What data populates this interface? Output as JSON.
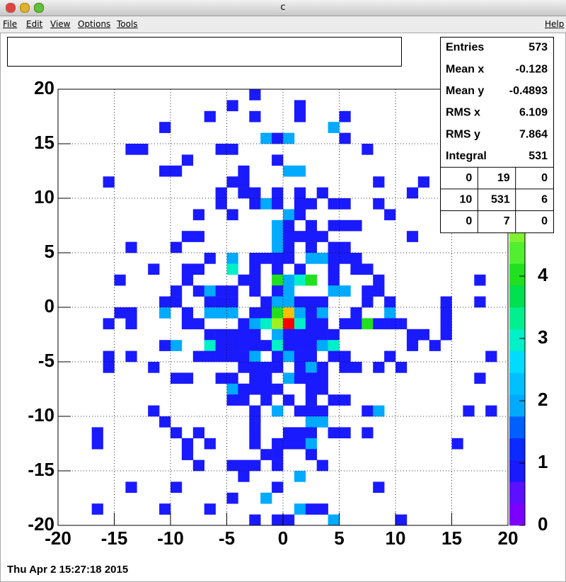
{
  "window": {
    "title": "c",
    "menu": [
      "File",
      "Edit",
      "View",
      "Options",
      "Tools"
    ],
    "help": "Help"
  },
  "date": "Thu Apr  2 15:27:18 2015",
  "stats": {
    "rows": [
      [
        "Entries",
        573
      ],
      [
        "Mean x",
        -0.128
      ],
      [
        "Mean y",
        -0.4893
      ],
      [
        "RMS x",
        6.109
      ],
      [
        "RMS y",
        7.864
      ],
      [
        "Integral",
        531
      ]
    ],
    "grid": [
      [
        0,
        19,
        0
      ],
      [
        10,
        531,
        6
      ],
      [
        0,
        7,
        0
      ]
    ]
  },
  "chart_data": {
    "type": "heatmap",
    "xlim": [
      -20,
      20
    ],
    "ylim": [
      -20,
      20
    ],
    "xticks": [
      -20,
      -15,
      -10,
      -5,
      0,
      5,
      10,
      15,
      20
    ],
    "yticks": [
      -20,
      -15,
      -10,
      -5,
      0,
      5,
      10,
      15,
      20
    ],
    "grid": true,
    "zlim": [
      0,
      7
    ],
    "zticks": [
      0,
      1,
      2,
      3,
      4
    ],
    "palette": [
      "#7d00ff",
      "#5c10ff",
      "#1a1aff",
      "#0a2aff",
      "#0060ff",
      "#00aaff",
      "#00c0ff",
      "#00dcff",
      "#00f0c8",
      "#00f090",
      "#00e050",
      "#20e020",
      "#50f030",
      "#80f030",
      "#a0f020",
      "#c8f000",
      "#e8e800",
      "#f8c000",
      "#ff8000",
      "#ff0000"
    ],
    "cells": [
      [
        -3,
        19,
        1
      ],
      [
        -5,
        18,
        1
      ],
      [
        1,
        18,
        1
      ],
      [
        -7,
        17,
        1
      ],
      [
        -3,
        17,
        1
      ],
      [
        1,
        17,
        1
      ],
      [
        5,
        17,
        1
      ],
      [
        -11,
        16,
        1
      ],
      [
        4,
        16,
        2
      ],
      [
        -2,
        15,
        2
      ],
      [
        -1,
        15,
        1
      ],
      [
        0,
        15,
        2
      ],
      [
        5,
        15,
        1
      ],
      [
        -14,
        14,
        1
      ],
      [
        -13,
        14,
        1
      ],
      [
        -6,
        14,
        1
      ],
      [
        -5,
        14,
        1
      ],
      [
        7,
        14,
        1
      ],
      [
        -9,
        13,
        1
      ],
      [
        -1,
        13,
        1
      ],
      [
        -11,
        12,
        1
      ],
      [
        -10,
        12,
        1
      ],
      [
        -4,
        12,
        1
      ],
      [
        0,
        12,
        2
      ],
      [
        1,
        12,
        2
      ],
      [
        -16,
        11,
        1
      ],
      [
        -5,
        11,
        1
      ],
      [
        -4,
        11,
        1
      ],
      [
        8,
        11,
        1
      ],
      [
        12,
        11,
        1
      ],
      [
        -6,
        10,
        1
      ],
      [
        -4,
        10,
        1
      ],
      [
        -3,
        10,
        1
      ],
      [
        -1,
        10,
        1
      ],
      [
        1,
        10,
        1
      ],
      [
        3,
        10,
        1
      ],
      [
        11,
        10,
        1
      ],
      [
        -6,
        9,
        1
      ],
      [
        -3,
        9,
        1
      ],
      [
        -2,
        9,
        2
      ],
      [
        -1,
        9,
        1
      ],
      [
        1,
        9,
        1
      ],
      [
        2,
        9,
        1
      ],
      [
        4,
        9,
        1
      ],
      [
        5,
        9,
        1
      ],
      [
        8,
        9,
        1
      ],
      [
        -8,
        8,
        1
      ],
      [
        -5,
        8,
        1
      ],
      [
        0,
        8,
        2
      ],
      [
        1,
        8,
        1
      ],
      [
        9,
        8,
        1
      ],
      [
        -1,
        7,
        2
      ],
      [
        0,
        7,
        1
      ],
      [
        2,
        7,
        1
      ],
      [
        4,
        7,
        1
      ],
      [
        5,
        7,
        1
      ],
      [
        6,
        7,
        1
      ],
      [
        -9,
        6,
        1
      ],
      [
        -8,
        6,
        1
      ],
      [
        -1,
        6,
        2
      ],
      [
        0,
        6,
        1
      ],
      [
        1,
        6,
        1
      ],
      [
        2,
        6,
        1
      ],
      [
        3,
        6,
        1
      ],
      [
        11,
        6,
        1
      ],
      [
        -14,
        5,
        1
      ],
      [
        -10,
        5,
        1
      ],
      [
        -1,
        5,
        2
      ],
      [
        0,
        5,
        1
      ],
      [
        2,
        5,
        1
      ],
      [
        4,
        5,
        1
      ],
      [
        5,
        5,
        1
      ],
      [
        -7,
        4,
        1
      ],
      [
        -5,
        4,
        2
      ],
      [
        -3,
        4,
        1
      ],
      [
        -2,
        4,
        1
      ],
      [
        -1,
        4,
        1
      ],
      [
        0,
        4,
        1
      ],
      [
        2,
        4,
        2
      ],
      [
        3,
        4,
        2
      ],
      [
        4,
        4,
        1
      ],
      [
        5,
        4,
        1
      ],
      [
        6,
        4,
        1
      ],
      [
        -12,
        3,
        1
      ],
      [
        -9,
        3,
        1
      ],
      [
        -8,
        3,
        1
      ],
      [
        -5,
        3,
        3
      ],
      [
        -3,
        3,
        1
      ],
      [
        -1,
        3,
        1
      ],
      [
        1,
        3,
        1
      ],
      [
        4,
        3,
        1
      ],
      [
        6,
        3,
        1
      ],
      [
        7,
        3,
        1
      ],
      [
        -15,
        2,
        1
      ],
      [
        -9,
        2,
        1
      ],
      [
        -4,
        2,
        1
      ],
      [
        -3,
        2,
        1
      ],
      [
        -1,
        2,
        4
      ],
      [
        0,
        2,
        2
      ],
      [
        1,
        2,
        3
      ],
      [
        2,
        2,
        4
      ],
      [
        4,
        2,
        1
      ],
      [
        8,
        2,
        1
      ],
      [
        17,
        2,
        1
      ],
      [
        -10,
        1,
        1
      ],
      [
        -8,
        1,
        1
      ],
      [
        -7,
        1,
        2
      ],
      [
        -6,
        1,
        1
      ],
      [
        -5,
        1,
        1
      ],
      [
        -3,
        1,
        1
      ],
      [
        -1,
        1,
        1
      ],
      [
        0,
        1,
        2
      ],
      [
        4,
        1,
        2
      ],
      [
        5,
        1,
        2
      ],
      [
        7,
        1,
        1
      ],
      [
        8,
        1,
        1
      ],
      [
        -11,
        0,
        1
      ],
      [
        -10,
        0,
        1
      ],
      [
        -7,
        0,
        1
      ],
      [
        -6,
        0,
        1
      ],
      [
        -5,
        0,
        1
      ],
      [
        -2,
        0,
        1
      ],
      [
        -1,
        0,
        2
      ],
      [
        0,
        0,
        2
      ],
      [
        1,
        0,
        1
      ],
      [
        2,
        0,
        1
      ],
      [
        3,
        0,
        1
      ],
      [
        7,
        0,
        1
      ],
      [
        9,
        0,
        1
      ],
      [
        14,
        0,
        1
      ],
      [
        17,
        0,
        1
      ],
      [
        -15,
        -1,
        1
      ],
      [
        -14,
        -1,
        1
      ],
      [
        -11,
        -1,
        2
      ],
      [
        -9,
        -1,
        1
      ],
      [
        -7,
        -1,
        2
      ],
      [
        -6,
        -1,
        2
      ],
      [
        -5,
        -1,
        2
      ],
      [
        -3,
        -1,
        1
      ],
      [
        -2,
        -1,
        1
      ],
      [
        -1,
        -1,
        4
      ],
      [
        0,
        -1,
        6
      ],
      [
        1,
        -1,
        2
      ],
      [
        2,
        -1,
        1
      ],
      [
        3,
        -1,
        2
      ],
      [
        6,
        -1,
        1
      ],
      [
        9,
        -1,
        2
      ],
      [
        14,
        -1,
        1
      ],
      [
        -16,
        -2,
        1
      ],
      [
        -14,
        -2,
        1
      ],
      [
        -9,
        -2,
        1
      ],
      [
        -8,
        -2,
        1
      ],
      [
        -4,
        -2,
        1
      ],
      [
        -3,
        -2,
        2
      ],
      [
        -2,
        -2,
        3
      ],
      [
        -1,
        -2,
        5
      ],
      [
        0,
        -2,
        7
      ],
      [
        1,
        -2,
        3
      ],
      [
        2,
        -2,
        1
      ],
      [
        3,
        -2,
        1
      ],
      [
        5,
        -2,
        1
      ],
      [
        6,
        -2,
        1
      ],
      [
        7,
        -2,
        4
      ],
      [
        8,
        -2,
        1
      ],
      [
        9,
        -2,
        1
      ],
      [
        10,
        -2,
        1
      ],
      [
        14,
        -2,
        1
      ],
      [
        -7,
        -3,
        1
      ],
      [
        -6,
        -3,
        1
      ],
      [
        -5,
        -3,
        1
      ],
      [
        -4,
        -3,
        1
      ],
      [
        -3,
        -3,
        1
      ],
      [
        -1,
        -3,
        2
      ],
      [
        0,
        -3,
        1
      ],
      [
        1,
        -3,
        1
      ],
      [
        2,
        -3,
        1
      ],
      [
        3,
        -3,
        1
      ],
      [
        4,
        -3,
        1
      ],
      [
        11,
        -3,
        1
      ],
      [
        12,
        -3,
        1
      ],
      [
        14,
        -3,
        1
      ],
      [
        -11,
        -4,
        1
      ],
      [
        -10,
        -4,
        2
      ],
      [
        -7,
        -4,
        3
      ],
      [
        -6,
        -4,
        1
      ],
      [
        -5,
        -4,
        1
      ],
      [
        -4,
        -4,
        1
      ],
      [
        -3,
        -4,
        1
      ],
      [
        -2,
        -4,
        1
      ],
      [
        -1,
        -4,
        3
      ],
      [
        0,
        -4,
        1
      ],
      [
        1,
        -4,
        1
      ],
      [
        2,
        -4,
        1
      ],
      [
        3,
        -4,
        2
      ],
      [
        4,
        -4,
        3
      ],
      [
        11,
        -4,
        1
      ],
      [
        13,
        -4,
        1
      ],
      [
        -16,
        -5,
        1
      ],
      [
        -14,
        -5,
        1
      ],
      [
        -8,
        -5,
        1
      ],
      [
        -7,
        -5,
        1
      ],
      [
        -6,
        -5,
        1
      ],
      [
        -5,
        -5,
        1
      ],
      [
        -4,
        -5,
        1
      ],
      [
        -3,
        -5,
        2
      ],
      [
        -1,
        -5,
        1
      ],
      [
        0,
        -5,
        2
      ],
      [
        1,
        -5,
        1
      ],
      [
        2,
        -5,
        1
      ],
      [
        4,
        -5,
        1
      ],
      [
        5,
        -5,
        1
      ],
      [
        9,
        -5,
        1
      ],
      [
        18,
        -5,
        1
      ],
      [
        -16,
        -6,
        1
      ],
      [
        -12,
        -6,
        1
      ],
      [
        -4,
        -6,
        1
      ],
      [
        -3,
        -6,
        1
      ],
      [
        -2,
        -6,
        1
      ],
      [
        -1,
        -6,
        1
      ],
      [
        1,
        -6,
        1
      ],
      [
        2,
        -6,
        2
      ],
      [
        3,
        -6,
        1
      ],
      [
        5,
        -6,
        1
      ],
      [
        6,
        -6,
        1
      ],
      [
        8,
        -6,
        1
      ],
      [
        10,
        -6,
        1
      ],
      [
        -10,
        -7,
        1
      ],
      [
        -9,
        -7,
        1
      ],
      [
        -6,
        -7,
        1
      ],
      [
        -5,
        -7,
        1
      ],
      [
        -3,
        -7,
        1
      ],
      [
        -2,
        -7,
        1
      ],
      [
        0,
        -7,
        2
      ],
      [
        1,
        -7,
        1
      ],
      [
        2,
        -7,
        1
      ],
      [
        3,
        -7,
        1
      ],
      [
        17,
        -7,
        1
      ],
      [
        -5,
        -8,
        2
      ],
      [
        -4,
        -8,
        1
      ],
      [
        -3,
        -8,
        1
      ],
      [
        -2,
        -8,
        1
      ],
      [
        -1,
        -8,
        1
      ],
      [
        2,
        -8,
        1
      ],
      [
        3,
        -8,
        1
      ],
      [
        -5,
        -9,
        1
      ],
      [
        -4,
        -9,
        1
      ],
      [
        -2,
        -9,
        1
      ],
      [
        0,
        -9,
        1
      ],
      [
        2,
        -9,
        1
      ],
      [
        4,
        -9,
        1
      ],
      [
        5,
        -9,
        1
      ],
      [
        -12,
        -10,
        1
      ],
      [
        -3,
        -10,
        1
      ],
      [
        -1,
        -10,
        2
      ],
      [
        1,
        -10,
        1
      ],
      [
        2,
        -10,
        1
      ],
      [
        3,
        -10,
        1
      ],
      [
        7,
        -10,
        1
      ],
      [
        8,
        -10,
        2
      ],
      [
        16,
        -10,
        1
      ],
      [
        18,
        -10,
        1
      ],
      [
        -11,
        -11,
        1
      ],
      [
        -3,
        -11,
        1
      ],
      [
        2,
        -11,
        2
      ],
      [
        3,
        -11,
        2
      ],
      [
        -17,
        -12,
        1
      ],
      [
        -10,
        -12,
        1
      ],
      [
        -8,
        -12,
        1
      ],
      [
        -3,
        -12,
        1
      ],
      [
        0,
        -12,
        1
      ],
      [
        1,
        -12,
        1
      ],
      [
        2,
        -12,
        1
      ],
      [
        4,
        -12,
        1
      ],
      [
        5,
        -12,
        1
      ],
      [
        7,
        -12,
        1
      ],
      [
        -17,
        -13,
        1
      ],
      [
        -9,
        -13,
        1
      ],
      [
        -7,
        -13,
        1
      ],
      [
        -3,
        -13,
        1
      ],
      [
        -1,
        -13,
        1
      ],
      [
        0,
        -13,
        1
      ],
      [
        1,
        -13,
        1
      ],
      [
        2,
        -13,
        2
      ],
      [
        15,
        -13,
        1
      ],
      [
        -9,
        -14,
        1
      ],
      [
        -2,
        -14,
        1
      ],
      [
        -1,
        -14,
        1
      ],
      [
        2,
        -14,
        1
      ],
      [
        -8,
        -15,
        1
      ],
      [
        -5,
        -15,
        1
      ],
      [
        -4,
        -15,
        1
      ],
      [
        -3,
        -15,
        1
      ],
      [
        -1,
        -15,
        1
      ],
      [
        3,
        -15,
        1
      ],
      [
        -4,
        -16,
        1
      ],
      [
        1,
        -16,
        2
      ],
      [
        -14,
        -17,
        1
      ],
      [
        -10,
        -17,
        1
      ],
      [
        -1,
        -17,
        1
      ],
      [
        8,
        -17,
        1
      ],
      [
        -5,
        -18,
        1
      ],
      [
        -2,
        -18,
        2
      ],
      [
        -17,
        -19,
        1
      ],
      [
        -11,
        -19,
        1
      ],
      [
        -7,
        -19,
        1
      ],
      [
        1,
        -19,
        2
      ],
      [
        2,
        -19,
        1
      ],
      [
        3,
        -19,
        1
      ],
      [
        -3,
        -20,
        1
      ],
      [
        -1,
        -20,
        1
      ],
      [
        0,
        -20,
        1
      ],
      [
        4,
        -20,
        2
      ],
      [
        10,
        -20,
        1
      ]
    ]
  }
}
